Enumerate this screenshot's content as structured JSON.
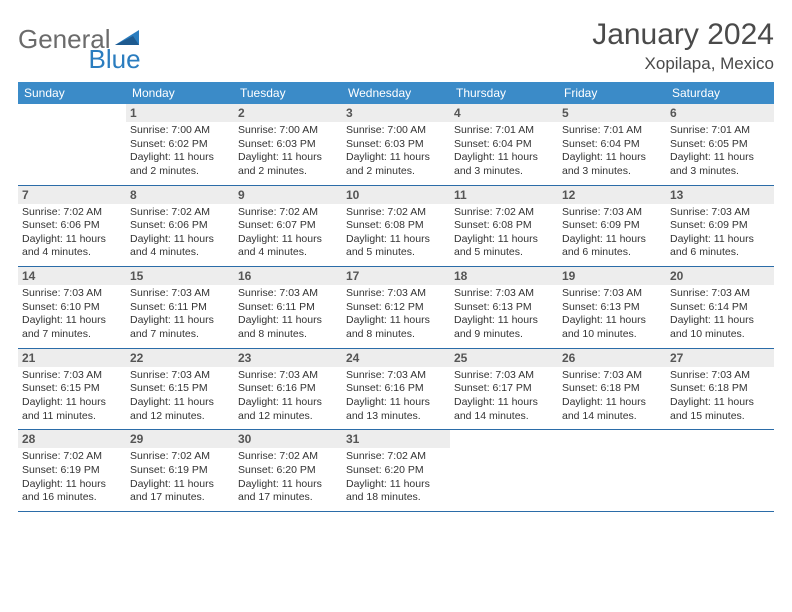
{
  "logo": {
    "text1": "General",
    "text2": "Blue"
  },
  "title": "January 2024",
  "location": "Xopilapa, Mexico",
  "weekdays": [
    "Sunday",
    "Monday",
    "Tuesday",
    "Wednesday",
    "Thursday",
    "Friday",
    "Saturday"
  ],
  "colors": {
    "header_bg": "#3b8bc8",
    "week_border": "#2b6ca8",
    "daynum_bg": "#ededed",
    "logo_gray": "#6b6b6b",
    "logo_blue": "#2b7dbf"
  },
  "layout": {
    "columns": 7,
    "rows": 5,
    "font_size_body": 10.5
  },
  "weeks": [
    [
      null,
      {
        "n": "1",
        "sr": "7:00 AM",
        "ss": "6:02 PM",
        "dl": "11 hours and 2 minutes."
      },
      {
        "n": "2",
        "sr": "7:00 AM",
        "ss": "6:03 PM",
        "dl": "11 hours and 2 minutes."
      },
      {
        "n": "3",
        "sr": "7:00 AM",
        "ss": "6:03 PM",
        "dl": "11 hours and 2 minutes."
      },
      {
        "n": "4",
        "sr": "7:01 AM",
        "ss": "6:04 PM",
        "dl": "11 hours and 3 minutes."
      },
      {
        "n": "5",
        "sr": "7:01 AM",
        "ss": "6:04 PM",
        "dl": "11 hours and 3 minutes."
      },
      {
        "n": "6",
        "sr": "7:01 AM",
        "ss": "6:05 PM",
        "dl": "11 hours and 3 minutes."
      }
    ],
    [
      {
        "n": "7",
        "sr": "7:02 AM",
        "ss": "6:06 PM",
        "dl": "11 hours and 4 minutes."
      },
      {
        "n": "8",
        "sr": "7:02 AM",
        "ss": "6:06 PM",
        "dl": "11 hours and 4 minutes."
      },
      {
        "n": "9",
        "sr": "7:02 AM",
        "ss": "6:07 PM",
        "dl": "11 hours and 4 minutes."
      },
      {
        "n": "10",
        "sr": "7:02 AM",
        "ss": "6:08 PM",
        "dl": "11 hours and 5 minutes."
      },
      {
        "n": "11",
        "sr": "7:02 AM",
        "ss": "6:08 PM",
        "dl": "11 hours and 5 minutes."
      },
      {
        "n": "12",
        "sr": "7:03 AM",
        "ss": "6:09 PM",
        "dl": "11 hours and 6 minutes."
      },
      {
        "n": "13",
        "sr": "7:03 AM",
        "ss": "6:09 PM",
        "dl": "11 hours and 6 minutes."
      }
    ],
    [
      {
        "n": "14",
        "sr": "7:03 AM",
        "ss": "6:10 PM",
        "dl": "11 hours and 7 minutes."
      },
      {
        "n": "15",
        "sr": "7:03 AM",
        "ss": "6:11 PM",
        "dl": "11 hours and 7 minutes."
      },
      {
        "n": "16",
        "sr": "7:03 AM",
        "ss": "6:11 PM",
        "dl": "11 hours and 8 minutes."
      },
      {
        "n": "17",
        "sr": "7:03 AM",
        "ss": "6:12 PM",
        "dl": "11 hours and 8 minutes."
      },
      {
        "n": "18",
        "sr": "7:03 AM",
        "ss": "6:13 PM",
        "dl": "11 hours and 9 minutes."
      },
      {
        "n": "19",
        "sr": "7:03 AM",
        "ss": "6:13 PM",
        "dl": "11 hours and 10 minutes."
      },
      {
        "n": "20",
        "sr": "7:03 AM",
        "ss": "6:14 PM",
        "dl": "11 hours and 10 minutes."
      }
    ],
    [
      {
        "n": "21",
        "sr": "7:03 AM",
        "ss": "6:15 PM",
        "dl": "11 hours and 11 minutes."
      },
      {
        "n": "22",
        "sr": "7:03 AM",
        "ss": "6:15 PM",
        "dl": "11 hours and 12 minutes."
      },
      {
        "n": "23",
        "sr": "7:03 AM",
        "ss": "6:16 PM",
        "dl": "11 hours and 12 minutes."
      },
      {
        "n": "24",
        "sr": "7:03 AM",
        "ss": "6:16 PM",
        "dl": "11 hours and 13 minutes."
      },
      {
        "n": "25",
        "sr": "7:03 AM",
        "ss": "6:17 PM",
        "dl": "11 hours and 14 minutes."
      },
      {
        "n": "26",
        "sr": "7:03 AM",
        "ss": "6:18 PM",
        "dl": "11 hours and 14 minutes."
      },
      {
        "n": "27",
        "sr": "7:03 AM",
        "ss": "6:18 PM",
        "dl": "11 hours and 15 minutes."
      }
    ],
    [
      {
        "n": "28",
        "sr": "7:02 AM",
        "ss": "6:19 PM",
        "dl": "11 hours and 16 minutes."
      },
      {
        "n": "29",
        "sr": "7:02 AM",
        "ss": "6:19 PM",
        "dl": "11 hours and 17 minutes."
      },
      {
        "n": "30",
        "sr": "7:02 AM",
        "ss": "6:20 PM",
        "dl": "11 hours and 17 minutes."
      },
      {
        "n": "31",
        "sr": "7:02 AM",
        "ss": "6:20 PM",
        "dl": "11 hours and 18 minutes."
      },
      null,
      null,
      null
    ]
  ]
}
